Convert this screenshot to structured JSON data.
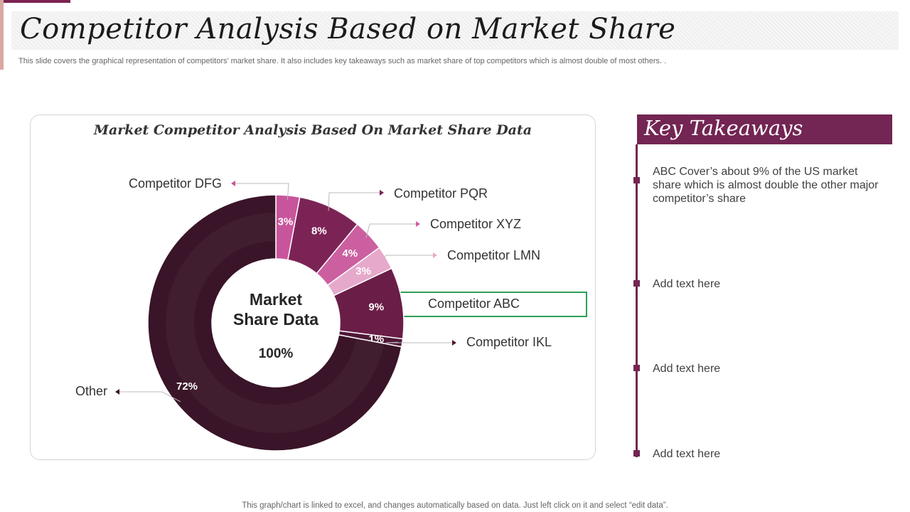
{
  "title": "Competitor Analysis Based on Market Share",
  "subtitle": "This slide covers the graphical representation of competitors’ market share. It also includes key takeaways such as market share of top competitors which is almost double of most others.     .",
  "chart_data": {
    "type": "pie",
    "title": "Market Competitor Analysis Based On Market Share Data",
    "center_label": [
      "Market",
      "Share Data"
    ],
    "center_value": "100%",
    "slices": [
      {
        "name": "Competitor DFG",
        "value": 3,
        "label": "3%",
        "color": "#c8559b"
      },
      {
        "name": "Competitor PQR",
        "value": 8,
        "label": "8%",
        "color": "#7c2356"
      },
      {
        "name": "Competitor XYZ",
        "value": 4,
        "label": "4%",
        "color": "#cc5fa0"
      },
      {
        "name": "Competitor LMN",
        "value": 3,
        "label": "3%",
        "color": "#e7a9cb"
      },
      {
        "name": "Competitor ABC",
        "value": 9,
        "label": "9%",
        "color": "#6a1d47"
      },
      {
        "name": "Competitor IKL",
        "value": 1,
        "label": "1%",
        "color": "#4f1836"
      },
      {
        "name": "Other",
        "value": 72,
        "label": "72%",
        "color": "#3a1428"
      }
    ],
    "highlight": "Competitor ABC",
    "highlight_color": "#2e9e57"
  },
  "key_takeaways": {
    "title": "Key Takeaways",
    "items": [
      "ABC Cover’s about 9% of the US market share which is almost double the other major competitor’s share",
      "Add text here",
      "Add text here",
      "Add text here"
    ]
  },
  "footer": "This graph/chart is linked to excel,  and changes automatically based on data. Just left click on it and select “edit data”."
}
